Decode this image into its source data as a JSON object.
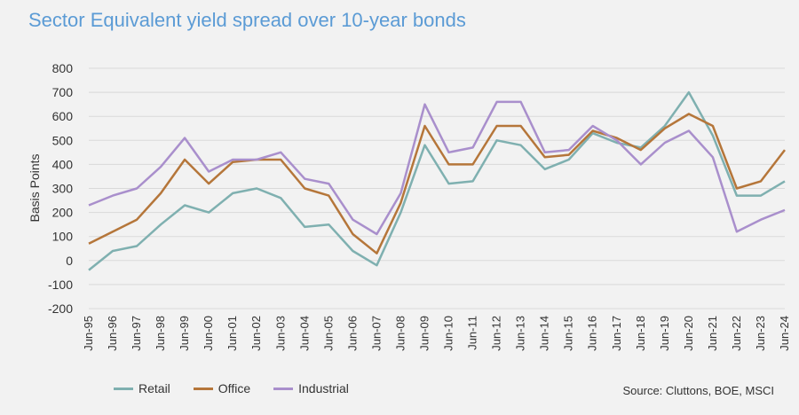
{
  "title": "Sector Equivalent yield spread over 10-year bonds",
  "source": "Source: Cluttons, BOE, MSCI",
  "chart_data": {
    "type": "line",
    "title": "Sector Equivalent yield spread over 10-year bonds",
    "xlabel": "",
    "ylabel": "Basis Points",
    "ylim": [
      -200,
      800
    ],
    "yticks": [
      -200,
      -100,
      0,
      100,
      200,
      300,
      400,
      500,
      600,
      700,
      800
    ],
    "x": [
      1995,
      1996,
      1997,
      1998,
      1999,
      2000,
      2001,
      2002,
      2003,
      2004,
      2005,
      2006,
      2007,
      2008,
      2009,
      2010,
      2011,
      2012,
      2013,
      2014,
      2015,
      2016,
      2017,
      2018,
      2019,
      2020,
      2021,
      2022,
      2023,
      2024
    ],
    "tick_labels": [
      "Jun-95",
      "Jun-96",
      "Jun-97",
      "Jun-98",
      "Jun-99",
      "Jun-00",
      "Jun-01",
      "Jun-02",
      "Jun-03",
      "Jun-04",
      "Jun-05",
      "Jun-06",
      "Jun-07",
      "Jun-08",
      "Jun-09",
      "Jun-10",
      "Jun-11",
      "Jun-12",
      "Jun-13",
      "Jun-14",
      "Jun-15",
      "Jun-16",
      "Jun-17",
      "Jun-18",
      "Jun-19",
      "Jun-20",
      "Jun-21",
      "Jun-22",
      "Jun-23",
      "Jun-24"
    ],
    "series": [
      {
        "name": "Retail",
        "color": "#7fb0b0",
        "values": [
          -40,
          40,
          60,
          150,
          230,
          200,
          280,
          300,
          260,
          140,
          150,
          40,
          -20,
          200,
          480,
          320,
          330,
          500,
          480,
          380,
          420,
          530,
          490,
          470,
          560,
          700,
          520,
          270,
          270,
          330
        ]
      },
      {
        "name": "Office",
        "color": "#b5763a",
        "values": [
          70,
          120,
          170,
          280,
          420,
          320,
          410,
          420,
          420,
          300,
          270,
          110,
          30,
          240,
          560,
          400,
          400,
          560,
          560,
          430,
          440,
          540,
          510,
          460,
          550,
          610,
          560,
          300,
          330,
          460
        ]
      },
      {
        "name": "Industrial",
        "color": "#a98fcc",
        "values": [
          230,
          270,
          300,
          390,
          510,
          370,
          420,
          420,
          450,
          340,
          320,
          170,
          110,
          280,
          650,
          450,
          470,
          660,
          660,
          450,
          460,
          560,
          500,
          400,
          490,
          540,
          430,
          120,
          170,
          210
        ]
      }
    ],
    "legend": "bottom-left",
    "grid": true
  }
}
